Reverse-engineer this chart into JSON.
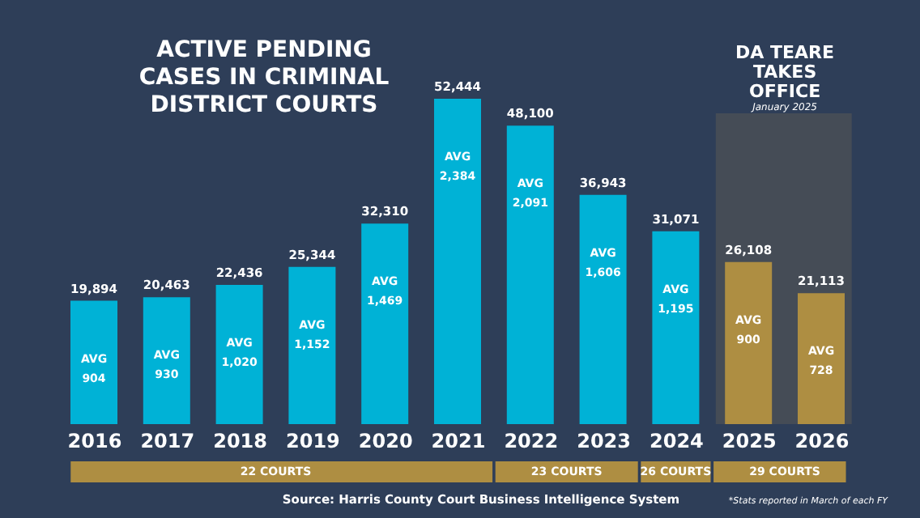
{
  "chart_data": {
    "type": "bar",
    "title": "ACTIVE PENDING CASES IN CRIMINAL DISTRICT COURTS",
    "categories": [
      "2016",
      "2017",
      "2018",
      "2019",
      "2020",
      "2021",
      "2022",
      "2023",
      "2024",
      "2025",
      "2026"
    ],
    "values": [
      19894,
      20463,
      22436,
      25344,
      32310,
      52444,
      48100,
      36943,
      31071,
      26108,
      21113
    ],
    "value_labels": [
      "19,894",
      "20,463",
      "22,436",
      "25,344",
      "32,310",
      "52,444",
      "48,100",
      "36,943",
      "31,071",
      "26,108",
      "21,113"
    ],
    "colors": [
      "#00b2d6",
      "#00b2d6",
      "#00b2d6",
      "#00b2d6",
      "#00b2d6",
      "#00b2d6",
      "#00b2d6",
      "#00b2d6",
      "#00b2d6",
      "#ae8e42",
      "#ae8e42"
    ],
    "bands": [
      {
        "axis": "x",
        "from": "2025",
        "to": "2026",
        "label": "DA TEARE TAKES OFFICE",
        "color": "#454c56"
      }
    ],
    "annotations": [
      "January 2025",
      "Source: Harris County Court Business Intelligence System",
      "*Stats reported in March of each FY",
      "AVG 904",
      "AVG 930",
      "AVG 1,020",
      "AVG 1,152",
      "AVG 1,469",
      "AVG 2,384",
      "AVG 2,091",
      "AVG 1,606",
      "AVG 1,195",
      "AVG 900",
      "AVG 728",
      "22 COURTS",
      "23 COURTS",
      "26 COURTS",
      "29 COURTS"
    ],
    "grid": false
  }
}
